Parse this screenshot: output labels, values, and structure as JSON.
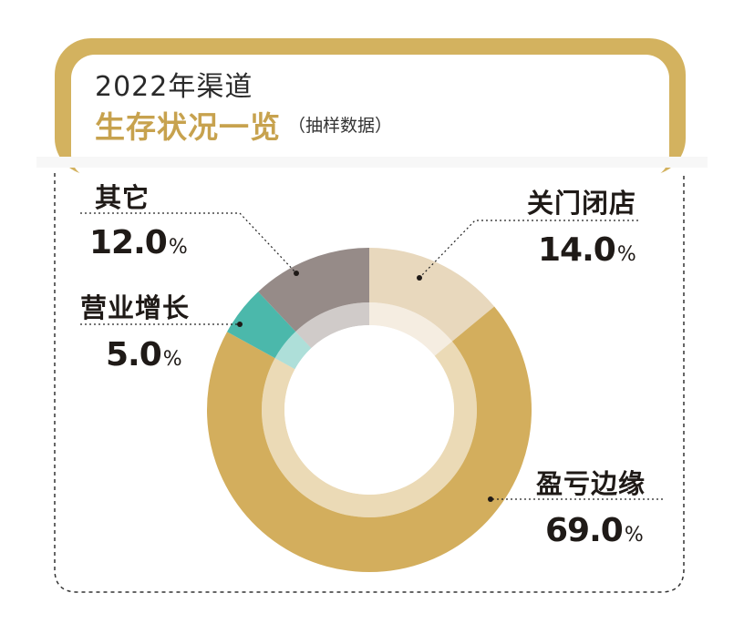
{
  "title": {
    "line1": "2022年渠道",
    "line2": "生存状况一览",
    "note": "（抽样数据）"
  },
  "colors": {
    "frame": "#d3b25f",
    "accent_text": "#c7a24e",
    "closed": "#e8d8bd",
    "margin": "#d3ae5d",
    "growth": "#4bb8ab",
    "other": "#968b88"
  },
  "chart_data": {
    "type": "pie",
    "variant": "donut",
    "unit": "%",
    "categories": [
      "关门闭店",
      "盈亏边缘",
      "营业增长",
      "其它"
    ],
    "values": [
      14.0,
      69.0,
      5.0,
      12.0
    ],
    "slices": [
      {
        "key": "closed",
        "label": "关门闭店",
        "value": 14.0,
        "value_text": "14.0",
        "color": "#e8d8bd"
      },
      {
        "key": "margin",
        "label": "盈亏边缘",
        "value": 69.0,
        "value_text": "69.0",
        "color": "#d3ae5d"
      },
      {
        "key": "growth",
        "label": "营业增长",
        "value": 5.0,
        "value_text": "5.0",
        "color": "#4bb8ab"
      },
      {
        "key": "other",
        "label": "其它",
        "value": 12.0,
        "value_text": "12.0",
        "color": "#968b88"
      }
    ],
    "start": "top",
    "direction": "clockwise"
  }
}
